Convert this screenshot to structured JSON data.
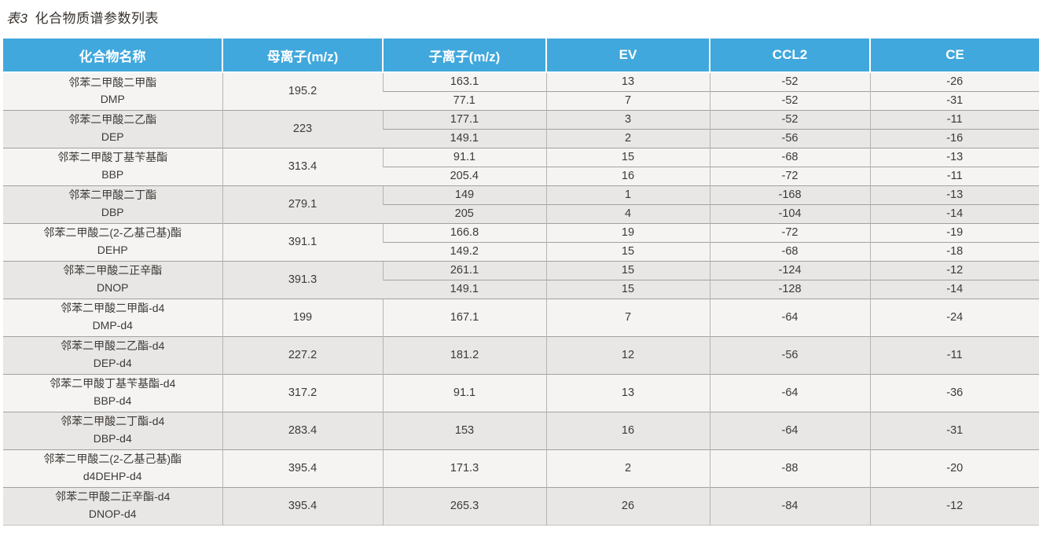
{
  "title": {
    "number": "表3",
    "text": "化合物质谱参数列表"
  },
  "table": {
    "headers": [
      "化合物名称",
      "母离子(m/z)",
      "子离子(m/z)",
      "EV",
      "CCL2",
      "CE"
    ],
    "groups": [
      {
        "name_cn": "邻苯二甲酸二甲酯",
        "abbr": "DMP",
        "parent_mz": "195.2",
        "transitions": [
          {
            "daughter_mz": "163.1",
            "ev": "13",
            "ccl2": "-52",
            "ce": "-26"
          },
          {
            "daughter_mz": "77.1",
            "ev": "7",
            "ccl2": "-52",
            "ce": "-31"
          }
        ]
      },
      {
        "name_cn": "邻苯二甲酸二乙酯",
        "abbr": "DEP",
        "parent_mz": "223",
        "transitions": [
          {
            "daughter_mz": "177.1",
            "ev": "3",
            "ccl2": "-52",
            "ce": "-11"
          },
          {
            "daughter_mz": "149.1",
            "ev": "2",
            "ccl2": "-56",
            "ce": "-16"
          }
        ]
      },
      {
        "name_cn": "邻苯二甲酸丁基苄基酯",
        "abbr": "BBP",
        "parent_mz": "313.4",
        "transitions": [
          {
            "daughter_mz": "91.1",
            "ev": "15",
            "ccl2": "-68",
            "ce": "-13"
          },
          {
            "daughter_mz": "205.4",
            "ev": "16",
            "ccl2": "-72",
            "ce": "-11"
          }
        ]
      },
      {
        "name_cn": "邻苯二甲酸二丁酯",
        "abbr": "DBP",
        "parent_mz": "279.1",
        "transitions": [
          {
            "daughter_mz": "149",
            "ev": "1",
            "ccl2": "-168",
            "ce": "-13"
          },
          {
            "daughter_mz": "205",
            "ev": "4",
            "ccl2": "-104",
            "ce": "-14"
          }
        ]
      },
      {
        "name_cn": "邻苯二甲酸二(2-乙基己基)酯",
        "abbr": "DEHP",
        "parent_mz": "391.1",
        "transitions": [
          {
            "daughter_mz": "166.8",
            "ev": "19",
            "ccl2": "-72",
            "ce": "-19"
          },
          {
            "daughter_mz": "149.2",
            "ev": "15",
            "ccl2": "-68",
            "ce": "-18"
          }
        ]
      },
      {
        "name_cn": "邻苯二甲酸二正辛酯",
        "abbr": "DNOP",
        "parent_mz": "391.3",
        "transitions": [
          {
            "daughter_mz": "261.1",
            "ev": "15",
            "ccl2": "-124",
            "ce": "-12"
          },
          {
            "daughter_mz": "149.1",
            "ev": "15",
            "ccl2": "-128",
            "ce": "-14"
          }
        ]
      },
      {
        "name_cn": "邻苯二甲酸二甲酯-d4",
        "abbr": "DMP-d4",
        "parent_mz": "199",
        "transitions": [
          {
            "daughter_mz": "167.1",
            "ev": "7",
            "ccl2": "-64",
            "ce": "-24"
          }
        ]
      },
      {
        "name_cn": "邻苯二甲酸二乙酯-d4",
        "abbr": "DEP-d4",
        "parent_mz": "227.2",
        "transitions": [
          {
            "daughter_mz": "181.2",
            "ev": "12",
            "ccl2": "-56",
            "ce": "-11"
          }
        ]
      },
      {
        "name_cn": "邻苯二甲酸丁基苄基酯-d4",
        "abbr": "BBP-d4",
        "parent_mz": "317.2",
        "transitions": [
          {
            "daughter_mz": "91.1",
            "ev": "13",
            "ccl2": "-64",
            "ce": "-36"
          }
        ]
      },
      {
        "name_cn": "邻苯二甲酸二丁酯-d4",
        "abbr": "DBP-d4",
        "parent_mz": "283.4",
        "transitions": [
          {
            "daughter_mz": "153",
            "ev": "16",
            "ccl2": "-64",
            "ce": "-31"
          }
        ]
      },
      {
        "name_cn": "邻苯二甲酸二(2-乙基己基)酯",
        "abbr": "d4DEHP-d4",
        "parent_mz": "395.4",
        "transitions": [
          {
            "daughter_mz": "171.3",
            "ev": "2",
            "ccl2": "-88",
            "ce": "-20"
          }
        ]
      },
      {
        "name_cn": "邻苯二甲酸二正辛酯-d4",
        "abbr": "DNOP-d4",
        "parent_mz": "395.4",
        "transitions": [
          {
            "daughter_mz": "265.3",
            "ev": "26",
            "ccl2": "-84",
            "ce": "-12"
          }
        ]
      }
    ]
  },
  "colors": {
    "header_bg": "#41a8dd",
    "header_text": "#ffffff",
    "row_odd": "#f5f4f2",
    "row_even": "#e9e7e5",
    "body_text": "#3d3a37",
    "title_text": "#38332f"
  }
}
